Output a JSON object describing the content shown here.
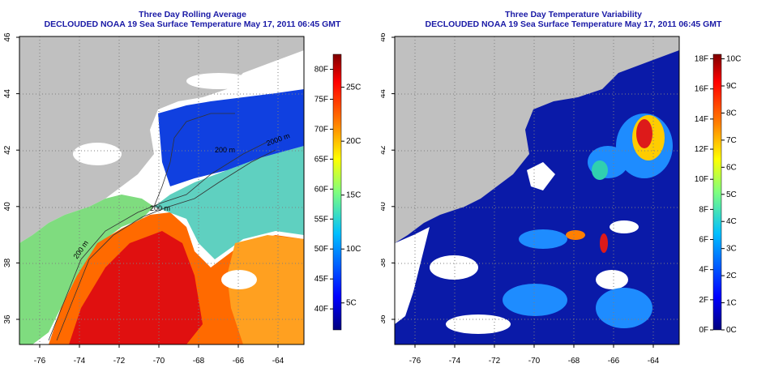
{
  "left_panel": {
    "title": "Three Day Rolling Average",
    "subtitle": "DECLOUDED NOAA 19 Sea Surface Temperature May 17, 2011 06:45 GMT",
    "x_ticks": [
      "-76",
      "-74",
      "-72",
      "-70",
      "-68",
      "-66",
      "-64"
    ],
    "y_ticks": [
      "36",
      "38",
      "40",
      "42",
      "44",
      "46"
    ],
    "contours": [
      "200 m",
      "2000 m",
      "200 m",
      "200 m"
    ],
    "colorbar_f": [
      "80F",
      "75F",
      "70F",
      "65F",
      "60F",
      "55F",
      "50F",
      "45F",
      "40F"
    ],
    "colorbar_c": [
      "25C",
      "20C",
      "15C",
      "10C",
      "5C"
    ],
    "colors": {
      "land": "#c0c0c0",
      "no_data": "#ffffff"
    }
  },
  "right_panel": {
    "title": "Three Day Temperature Variability",
    "subtitle": "DECLOUDED NOAA 19 Sea Surface Temperature May 17, 2011 06:45 GMT",
    "x_ticks": [
      "-76",
      "-74",
      "-72",
      "-70",
      "-68",
      "-66",
      "-64"
    ],
    "y_ticks": [
      "36",
      "38",
      "40",
      "42",
      "44",
      "46"
    ],
    "colorbar_f": [
      "18F",
      "16F",
      "14F",
      "12F",
      "10F",
      "8F",
      "6F",
      "4F",
      "2F",
      "0F"
    ],
    "colorbar_c": [
      "10C",
      "9C",
      "8C",
      "7C",
      "6C",
      "5C",
      "4C",
      "3C",
      "2C",
      "1C",
      "0C"
    ],
    "colors": {
      "land": "#c0c0c0",
      "no_data": "#ffffff"
    }
  },
  "palette": [
    "#00007f",
    "#0000ff",
    "#007fff",
    "#00ffff",
    "#7fff7f",
    "#ffff00",
    "#ff7f00",
    "#ff0000",
    "#7f0000"
  ]
}
